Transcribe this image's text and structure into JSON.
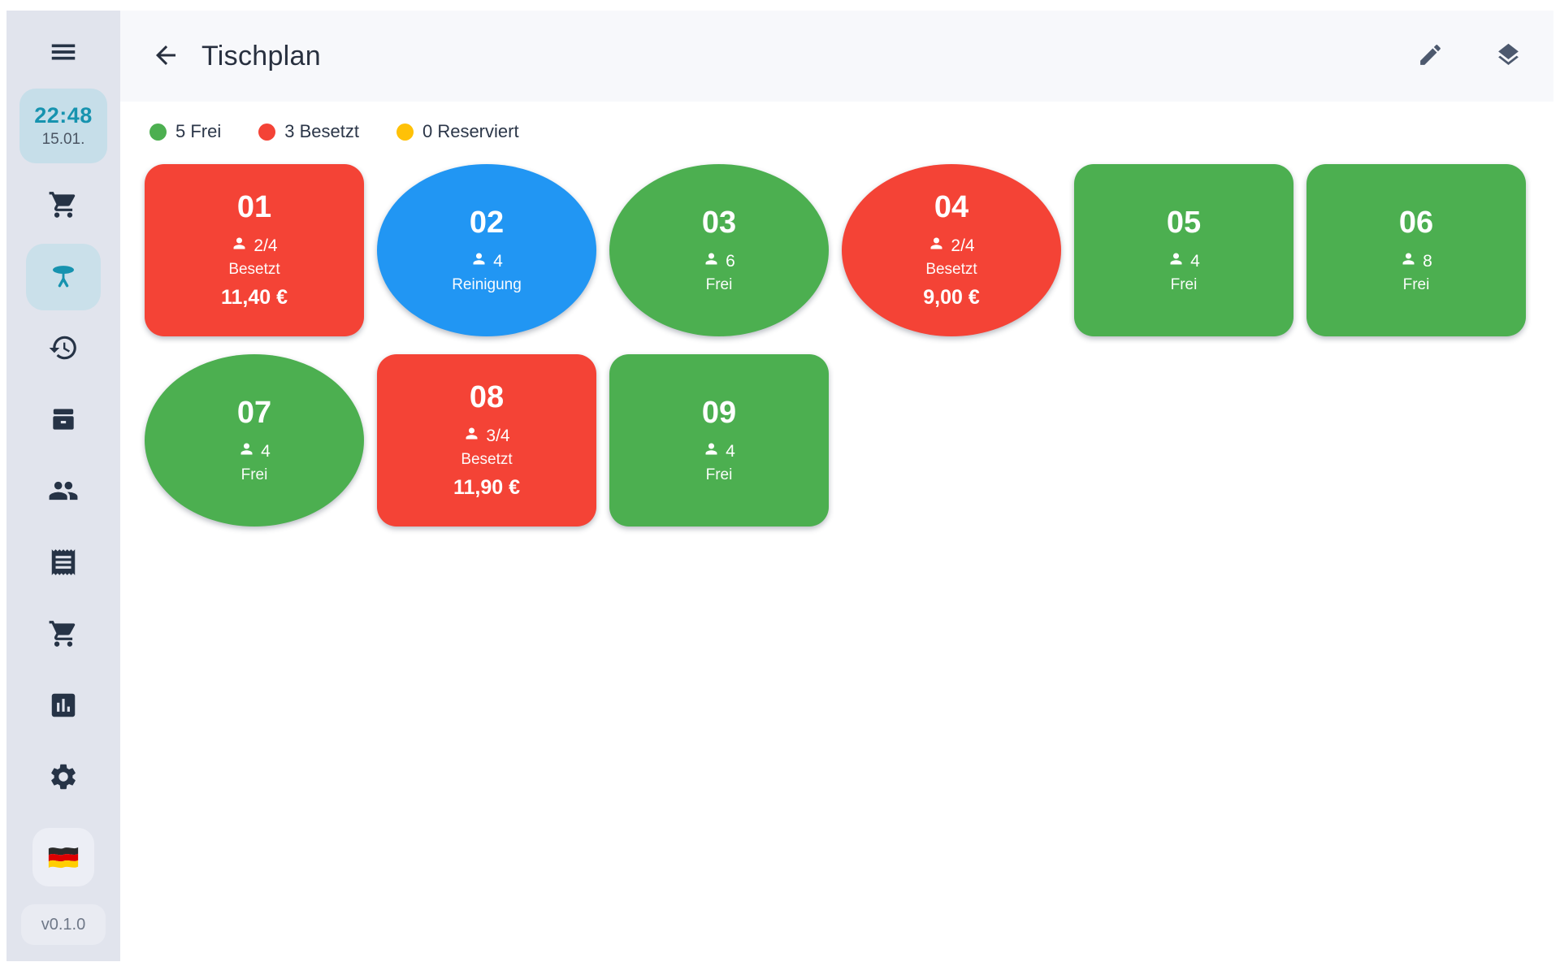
{
  "app": {
    "version": "v0.1.0"
  },
  "header": {
    "title": "Tischplan"
  },
  "sidebar": {
    "clock": {
      "time": "22:48",
      "date": "15.01."
    },
    "nav": [
      {
        "name": "orders",
        "icon": "shopping-cart-icon",
        "active": false
      },
      {
        "name": "table-plan",
        "icon": "table-icon",
        "active": true
      },
      {
        "name": "history",
        "icon": "history-icon",
        "active": false
      },
      {
        "name": "cash-box",
        "icon": "cash-box-icon",
        "active": false
      },
      {
        "name": "customers",
        "icon": "people-icon",
        "active": false
      },
      {
        "name": "receipts",
        "icon": "receipt-icon",
        "active": false
      },
      {
        "name": "cart",
        "icon": "shopping-cart-icon",
        "active": false
      },
      {
        "name": "statistics",
        "icon": "bar-chart-icon",
        "active": false
      },
      {
        "name": "settings",
        "icon": "settings-icon",
        "active": false
      }
    ],
    "language_flag": "german-flag-icon"
  },
  "legend": {
    "items": [
      {
        "label": "5 Frei",
        "color": "#4caf50"
      },
      {
        "label": "3 Besetzt",
        "color": "#f44336"
      },
      {
        "label": "0 Reserviert",
        "color": "#ffc107"
      }
    ]
  },
  "tables": [
    {
      "id": "01",
      "shape": "rect",
      "color": "#f44336",
      "persons": "2/4",
      "status": "Besetzt",
      "amount": "11,40 €"
    },
    {
      "id": "02",
      "shape": "ellipse",
      "color": "#2196f3",
      "persons": "4",
      "status": "Reinigung",
      "amount": ""
    },
    {
      "id": "03",
      "shape": "ellipse",
      "color": "#4caf50",
      "persons": "6",
      "status": "Frei",
      "amount": ""
    },
    {
      "id": "04",
      "shape": "ellipse",
      "color": "#f44336",
      "persons": "2/4",
      "status": "Besetzt",
      "amount": "9,00 €"
    },
    {
      "id": "05",
      "shape": "rect",
      "color": "#4caf50",
      "persons": "4",
      "status": "Frei",
      "amount": ""
    },
    {
      "id": "06",
      "shape": "rect",
      "color": "#4caf50",
      "persons": "8",
      "status": "Frei",
      "amount": ""
    },
    {
      "id": "07",
      "shape": "ellipse",
      "color": "#4caf50",
      "persons": "4",
      "status": "Frei",
      "amount": ""
    },
    {
      "id": "08",
      "shape": "rect",
      "color": "#f44336",
      "persons": "3/4",
      "status": "Besetzt",
      "amount": "11,90 €"
    },
    {
      "id": "09",
      "shape": "rect",
      "color": "#4caf50",
      "persons": "4",
      "status": "Frei",
      "amount": ""
    }
  ]
}
